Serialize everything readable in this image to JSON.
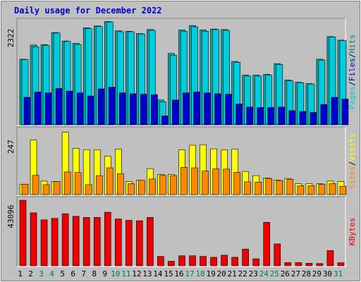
{
  "chart_data": {
    "type": "bar",
    "title": "Daily usage for December 2022",
    "categories": [
      "1",
      "2",
      "3",
      "4",
      "5",
      "6",
      "7",
      "8",
      "9",
      "10",
      "11",
      "12",
      "13",
      "14",
      "15",
      "16",
      "17",
      "18",
      "19",
      "20",
      "21",
      "22",
      "23",
      "24",
      "25",
      "26",
      "27",
      "28",
      "29",
      "30",
      "31"
    ],
    "weekend_days": [
      "3",
      "4",
      "10",
      "11",
      "17",
      "18",
      "24",
      "25",
      "31"
    ],
    "colors": {
      "hits": "#00aaaa",
      "files": "#00ccdd",
      "pages": "#0000cc",
      "visits": "#ffff00",
      "sites": "#ff8800",
      "kbytes": "#ee0000",
      "weekday_label": "#000000",
      "weekend_label": "#008040",
      "plot_bg": "#c0c0c0",
      "title": "#0000cc"
    },
    "panels": [
      {
        "name": "hits-files-pages",
        "ymax_label": "2322",
        "ymax": 2322,
        "legend": [
          {
            "text": "Pages",
            "color": "#00cccc"
          },
          {
            "text": "/",
            "color": "#000000"
          },
          {
            "text": "Files",
            "color": "#0000cc"
          },
          {
            "text": "/",
            "color": "#000000"
          },
          {
            "text": "Hits",
            "color": "#008080"
          }
        ],
        "series": [
          {
            "name": "Hits",
            "color": "#00aaaa",
            "values": [
              1480,
              1800,
              1810,
              2080,
              1890,
              1840,
              2190,
              2230,
              2330,
              2120,
              2110,
              2060,
              2150,
              560,
              1610,
              2140,
              2240,
              2140,
              2160,
              2150,
              1430,
              1120,
              1120,
              1140,
              1380,
              1010,
              960,
              930,
              1480,
              1990,
              1910
            ]
          },
          {
            "name": "Files",
            "color": "#00ccdd",
            "values": [
              1470,
              1760,
              1790,
              2070,
              1880,
              1810,
              2170,
              2220,
              2320,
              2100,
              2100,
              2050,
              2130,
              520,
              1570,
              2110,
              2210,
              2110,
              2150,
              2130,
              1410,
              1100,
              1100,
              1120,
              1360,
              990,
              950,
              920,
              1460,
              1980,
              1900
            ]
          },
          {
            "name": "Pages",
            "color": "#0000cc",
            "values": [
              620,
              740,
              720,
              820,
              760,
              720,
              650,
              810,
              850,
              720,
              700,
              690,
              680,
              200,
              560,
              720,
              740,
              720,
              700,
              690,
              470,
              400,
              390,
              390,
              400,
              320,
              300,
              280,
              460,
              620,
              580
            ]
          }
        ]
      },
      {
        "name": "visits-sites",
        "ymax_label": "247",
        "ymax": 247,
        "legend": [
          {
            "text": "Sites",
            "color": "#ff8800"
          },
          {
            "text": "/",
            "color": "#000000"
          },
          {
            "text": "Visits",
            "color": "#ffff00"
          }
        ],
        "series": [
          {
            "name": "Visits",
            "color": "#ffff00",
            "values": [
              40,
              210,
              52,
              50,
              240,
              178,
              173,
              173,
              148,
              175,
              50,
              55,
              100,
              78,
              78,
              172,
              190,
              192,
              176,
              172,
              175,
              89,
              73,
              64,
              56,
              62,
              42,
              42,
              42,
              52,
              50
            ]
          },
          {
            "name": "Sites",
            "color": "#ff8800",
            "values": [
              40,
              74,
              38,
              50,
              87,
              85,
              38,
              73,
              103,
              80,
              42,
              55,
              60,
              74,
              73,
              105,
              103,
              91,
              99,
              98,
              86,
              49,
              48,
              62,
              54,
              59,
              34,
              34,
              40,
              42,
              32
            ]
          }
        ]
      },
      {
        "name": "kbytes",
        "ymax_label": "43096",
        "ymax": 43096,
        "legend": [
          {
            "text": "KBytes",
            "color": "#ee0000"
          }
        ],
        "series": [
          {
            "name": "KBytes",
            "color": "#ee0000",
            "values": [
              43096,
              34800,
              30200,
              31200,
              34200,
              32500,
              31800,
              31800,
              35200,
              30800,
              29900,
              29600,
              31800,
              6200,
              3000,
              6600,
              6600,
              6200,
              5600,
              7000,
              5600,
              11000,
              4600,
              28600,
              14400,
              2100,
              2100,
              1700,
              1500,
              10000,
              2000
            ]
          }
        ]
      }
    ]
  }
}
